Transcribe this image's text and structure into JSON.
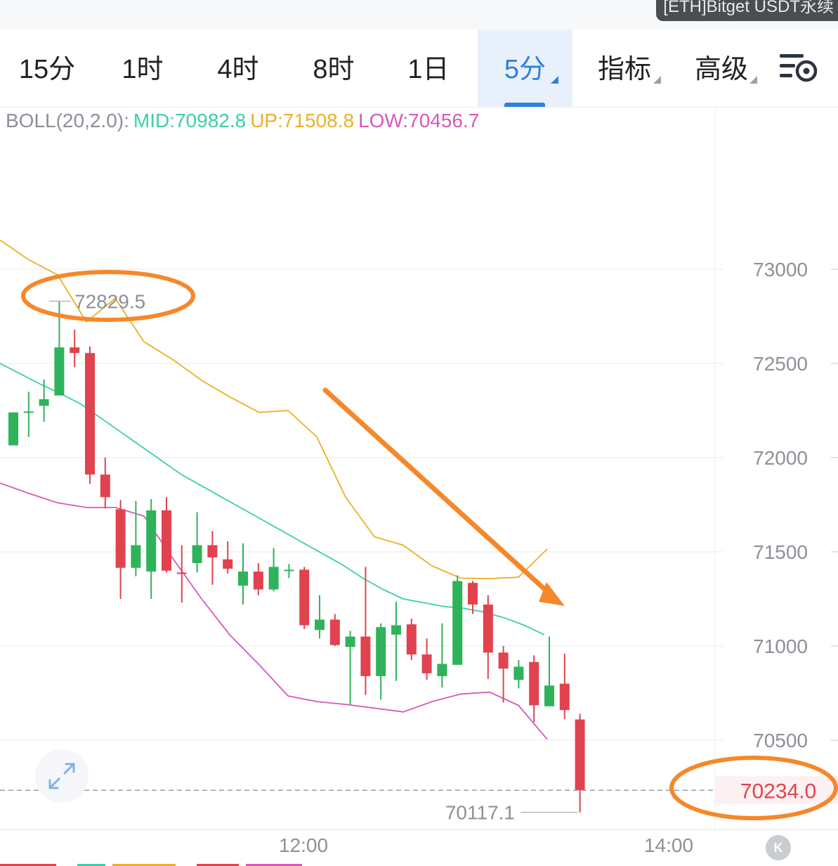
{
  "pair_badge": "[ETH]Bitget USDT永续",
  "toolbar": {
    "tabs": [
      {
        "label": "15分"
      },
      {
        "label": "1时"
      },
      {
        "label": "4时"
      },
      {
        "label": "8时"
      },
      {
        "label": "1日"
      },
      {
        "label": "5分",
        "active": true,
        "dropdown": true
      },
      {
        "label": "指标",
        "dropdown": true
      },
      {
        "label": "高级",
        "dropdown": true
      }
    ],
    "settings_icon": "chart-settings-icon"
  },
  "boll": {
    "name": "BOLL(20,2.0):",
    "mid": "MID:70982.8",
    "up": "UP:71508.8",
    "low": "LOW:70456.7"
  },
  "colors": {
    "up_candle": "#2fb35a",
    "down_candle": "#e0434e",
    "mid_line": "#3ccfa8",
    "up_line": "#eab026",
    "low_line": "#d957b8",
    "accent": "#2f7fe0",
    "annotation": "#f5882a"
  },
  "chart_data": {
    "type": "candlestick",
    "y_ticks": [
      "73000",
      "72500",
      "72000",
      "71500",
      "71000",
      "70500"
    ],
    "x_ticks": [
      "12:00",
      "14:00"
    ],
    "ylim": [
      70000,
      73400
    ],
    "high_label": "72829.5",
    "low_label": "70117.1",
    "current_price_label": "70234.0",
    "current_price": 70234.0,
    "candles": [
      {
        "o": 72065,
        "h": 72240,
        "l": 72065,
        "c": 72240
      },
      {
        "o": 72240,
        "h": 72350,
        "l": 72110,
        "c": 72245
      },
      {
        "o": 72275,
        "h": 72415,
        "l": 72190,
        "c": 72310
      },
      {
        "o": 72330,
        "h": 72830,
        "l": 72330,
        "c": 72585
      },
      {
        "o": 72585,
        "h": 72680,
        "l": 72480,
        "c": 72555
      },
      {
        "o": 72555,
        "h": 72590,
        "l": 71860,
        "c": 71910
      },
      {
        "o": 71910,
        "h": 72000,
        "l": 71730,
        "c": 71790
      },
      {
        "o": 71725,
        "h": 71775,
        "l": 71250,
        "c": 71415
      },
      {
        "o": 71415,
        "h": 71770,
        "l": 71370,
        "c": 71535
      },
      {
        "o": 71395,
        "h": 71780,
        "l": 71250,
        "c": 71720
      },
      {
        "o": 71720,
        "h": 71790,
        "l": 71390,
        "c": 71400
      },
      {
        "o": 71390,
        "h": 71535,
        "l": 71230,
        "c": 71385
      },
      {
        "o": 71440,
        "h": 71710,
        "l": 71390,
        "c": 71535
      },
      {
        "o": 71535,
        "h": 71610,
        "l": 71325,
        "c": 71470
      },
      {
        "o": 71460,
        "h": 71555,
        "l": 71385,
        "c": 71410
      },
      {
        "o": 71320,
        "h": 71545,
        "l": 71220,
        "c": 71395
      },
      {
        "o": 71395,
        "h": 71440,
        "l": 71270,
        "c": 71300
      },
      {
        "o": 71300,
        "h": 71520,
        "l": 71290,
        "c": 71420
      },
      {
        "o": 71400,
        "h": 71435,
        "l": 71360,
        "c": 71405
      },
      {
        "o": 71405,
        "h": 71420,
        "l": 71090,
        "c": 71110
      },
      {
        "o": 71085,
        "h": 71270,
        "l": 71040,
        "c": 71140
      },
      {
        "o": 71140,
        "h": 71170,
        "l": 71000,
        "c": 71005
      },
      {
        "o": 70995,
        "h": 71080,
        "l": 70690,
        "c": 71050
      },
      {
        "o": 71050,
        "h": 71420,
        "l": 70740,
        "c": 70840
      },
      {
        "o": 70840,
        "h": 71120,
        "l": 70715,
        "c": 71100
      },
      {
        "o": 71060,
        "h": 71235,
        "l": 70815,
        "c": 71110
      },
      {
        "o": 71115,
        "h": 71145,
        "l": 70925,
        "c": 70955
      },
      {
        "o": 70955,
        "h": 71040,
        "l": 70820,
        "c": 70855
      },
      {
        "o": 70840,
        "h": 71120,
        "l": 70780,
        "c": 70905
      },
      {
        "o": 70900,
        "h": 71375,
        "l": 70900,
        "c": 71345
      },
      {
        "o": 71335,
        "h": 71345,
        "l": 71170,
        "c": 71220
      },
      {
        "o": 71220,
        "h": 71270,
        "l": 70825,
        "c": 70965
      },
      {
        "o": 70965,
        "h": 71000,
        "l": 70700,
        "c": 70880
      },
      {
        "o": 70820,
        "h": 70925,
        "l": 70775,
        "c": 70890
      },
      {
        "o": 70915,
        "h": 70950,
        "l": 70595,
        "c": 70685
      },
      {
        "o": 70680,
        "h": 71050,
        "l": 70690,
        "c": 70790
      },
      {
        "o": 70800,
        "h": 70960,
        "l": 70612,
        "c": 70660
      },
      {
        "o": 70610,
        "h": 70640,
        "l": 70117,
        "c": 70234
      }
    ],
    "mid_band": [
      72500,
      72445,
      72390,
      72340,
      72285,
      72210,
      72135,
      72060,
      71985,
      71910,
      71850,
      71790,
      71730,
      71670,
      71610,
      71550,
      71490,
      71430,
      71360,
      71300,
      71250,
      71230,
      71210,
      71200,
      71180,
      71150,
      71110,
      71060
    ],
    "upper_band": [
      73155,
      73050,
      72970,
      72720,
      72845,
      72615,
      72520,
      72410,
      72320,
      72240,
      72250,
      72110,
      71790,
      71580,
      71535,
      71425,
      71360,
      71358,
      71365,
      71515
    ],
    "lower_band": [
      71865,
      71810,
      71760,
      71735,
      71735,
      71690,
      71465,
      71250,
      71055,
      70900,
      70735,
      70705,
      70690,
      70670,
      70650,
      70705,
      70745,
      70755,
      70685,
      70505
    ]
  }
}
